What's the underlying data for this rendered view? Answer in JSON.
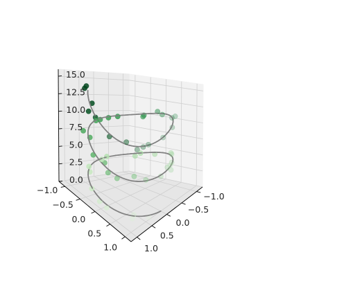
{
  "chart_data": {
    "type": "scatter",
    "projection": "3d",
    "title": "",
    "xlabel": "",
    "ylabel": "",
    "zlabel": "",
    "xlim": [
      -1.2,
      1.2
    ],
    "ylim": [
      -1.2,
      1.2
    ],
    "zlim": [
      0,
      16
    ],
    "x_ticks": [
      -1.0,
      -0.5,
      0.0,
      0.5,
      1.0
    ],
    "y_ticks": [
      -1.0,
      -0.5,
      0.0,
      0.5,
      1.0
    ],
    "z_ticks": [
      0.0,
      2.5,
      5.0,
      7.5,
      10.0,
      12.5,
      15.0
    ],
    "x_tick_labels": [
      "−1.0",
      "−0.5",
      "0.0",
      "0.5",
      "1.0"
    ],
    "y_tick_labels": [
      "−1.0",
      "−0.5",
      "0.0",
      "0.5",
      "1.0"
    ],
    "z_tick_labels": [
      "0.0",
      "2.5",
      "5.0",
      "7.5",
      "10.0",
      "12.5",
      "15.0"
    ],
    "grid": true,
    "colormap": "Greens",
    "line": {
      "name": "",
      "color": "#808080",
      "x_expr": "sin(t)",
      "y_expr": "cos(t)",
      "z_expr": "t",
      "t_range": [
        0,
        15
      ]
    },
    "scatter": {
      "name": "",
      "color_by": "z",
      "z": [
        0.25,
        0.6,
        0.9,
        1.3,
        1.6,
        2.0,
        2.4,
        2.7,
        3.1,
        3.4,
        3.8,
        4.2,
        4.5,
        4.9,
        5.2,
        5.6,
        6.0,
        6.3,
        6.7,
        7.0,
        7.4,
        7.8,
        8.1,
        8.5,
        8.8,
        9.2,
        9.6,
        9.9,
        10.3,
        10.6,
        11.0,
        11.4,
        11.7,
        12.1,
        12.4,
        12.8,
        13.2,
        13.5,
        13.9,
        14.2,
        14.6,
        15.0,
        15.2,
        14.4,
        13.0,
        11.2,
        9.4,
        7.6,
        5.8,
        4.0
      ],
      "x": [
        0.38,
        0.73,
        0.65,
        1.05,
        1.08,
        0.98,
        0.58,
        0.48,
        -0.04,
        -0.22,
        -0.74,
        -0.85,
        -0.92,
        -1.05,
        -0.93,
        -0.58,
        -0.32,
        0.03,
        0.39,
        0.55,
        0.96,
        0.93,
        1.05,
        0.74,
        0.78,
        0.14,
        -0.23,
        -0.44,
        -0.82,
        -0.81,
        -0.97,
        -0.94,
        -0.8,
        -0.47,
        -0.08,
        0.33,
        0.65,
        0.74,
        1.02,
        0.99,
        0.81,
        0.56,
        0.72,
        1.06,
        0.48,
        -1.0,
        0.03,
        1.05,
        -0.33,
        -0.78
      ],
      "y": [
        0.97,
        0.78,
        0.75,
        0.24,
        0.04,
        -0.32,
        -0.77,
        -0.9,
        -0.98,
        -0.99,
        -0.56,
        -0.49,
        -0.09,
        0.31,
        0.45,
        0.79,
        0.9,
        1.03,
        0.89,
        0.66,
        0.5,
        0.06,
        -0.2,
        -0.61,
        -0.79,
        -0.99,
        -0.94,
        -0.84,
        -0.38,
        -0.34,
        0.1,
        0.55,
        0.58,
        0.91,
        0.99,
        0.91,
        0.86,
        0.59,
        0.31,
        -0.18,
        -0.47,
        -0.9,
        -0.8,
        -0.34,
        0.89,
        -0.08,
        -0.96,
        0.29,
        1.01,
        0.54
      ]
    }
  }
}
